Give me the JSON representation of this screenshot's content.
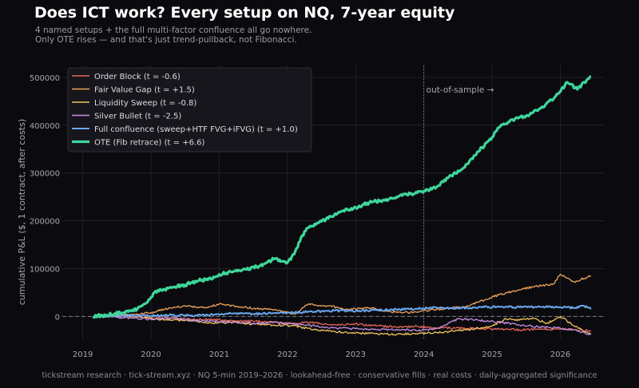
{
  "header": {
    "title": "Does ICT work? Every setup on NQ, 7-year equity",
    "subtitle_line1": "4 named setups + the full multi-factor confluence all go nowhere.",
    "subtitle_line2": "Only OTE rises — and that's just trend-pullback, not Fibonacci."
  },
  "footer": {
    "text": "tickstream research · tick-stream.xyz · NQ 5-min 2019–2026 · lookahead-free · conservative fills · real costs · daily-aggregated significance"
  },
  "colors": {
    "background": "#0b0b0f",
    "grid": "#24242c",
    "tick_text": "#a6a6ae"
  },
  "chart_data": {
    "type": "line",
    "ylabel": "cumulative P&L ($, 1 contract, after costs)",
    "xlim": [
      2018.7,
      2026.65
    ],
    "ylim": [
      -48000,
      525000
    ],
    "x_ticks": [
      2019,
      2020,
      2021,
      2022,
      2023,
      2024,
      2025,
      2026
    ],
    "x_tick_labels": [
      "2019",
      "2020",
      "2021",
      "2022",
      "2023",
      "2024",
      "2025",
      "2026"
    ],
    "y_ticks": [
      0,
      100000,
      200000,
      300000,
      400000,
      500000
    ],
    "y_tick_labels": [
      "0",
      "100000",
      "200000",
      "300000",
      "400000",
      "500000"
    ],
    "grid": true,
    "zero_line": true,
    "oos_marker": {
      "x": 2024.0,
      "label": "out-of-sample →"
    },
    "legend_position": "top-left",
    "series": [
      {
        "name": "Order Block   (t = -0.6)",
        "color": "#e8665a",
        "width": 1.3,
        "x": [
          2019.2,
          2019.5,
          2019.8,
          2020.0,
          2020.3,
          2020.6,
          2020.9,
          2021.2,
          2021.5,
          2021.8,
          2022.1,
          2022.4,
          2022.7,
          2023.0,
          2023.3,
          2023.6,
          2023.9,
          2024.2,
          2024.5,
          2024.8,
          2025.1,
          2025.4,
          2025.7,
          2026.0,
          2026.2,
          2026.45
        ],
        "values": [
          0,
          1000,
          -2000,
          -3000,
          -4000,
          -6000,
          -7000,
          -9000,
          -10000,
          -12000,
          -14000,
          -13000,
          -18000,
          -16000,
          -20000,
          -22000,
          -21000,
          -25000,
          -24000,
          -26000,
          -27000,
          -28000,
          -27000,
          -26000,
          -28000,
          -30000
        ]
      },
      {
        "name": "Fair Value Gap   (t = +1.5)",
        "color": "#f0a35c",
        "width": 1.3,
        "x": [
          2019.2,
          2019.5,
          2019.8,
          2020.0,
          2020.2,
          2020.5,
          2020.8,
          2021.0,
          2021.3,
          2021.6,
          2021.9,
          2022.1,
          2022.3,
          2022.6,
          2022.9,
          2023.2,
          2023.5,
          2023.8,
          2024.0,
          2024.3,
          2024.6,
          2024.9,
          2025.1,
          2025.3,
          2025.6,
          2025.9,
          2026.0,
          2026.2,
          2026.45
        ],
        "values": [
          0,
          2000,
          5000,
          8000,
          15000,
          22000,
          18000,
          26000,
          20000,
          16000,
          12000,
          5000,
          25000,
          22000,
          14000,
          18000,
          10000,
          8000,
          12000,
          16000,
          20000,
          35000,
          45000,
          52000,
          62000,
          68000,
          88000,
          72000,
          85000
        ]
      },
      {
        "name": "Liquidity Sweep   (t = -0.8)",
        "color": "#f2c45e",
        "width": 1.3,
        "x": [
          2019.2,
          2019.5,
          2019.8,
          2020.0,
          2020.3,
          2020.6,
          2020.9,
          2021.2,
          2021.5,
          2021.8,
          2022.1,
          2022.4,
          2022.7,
          2023.0,
          2023.3,
          2023.6,
          2023.9,
          2024.2,
          2024.5,
          2024.8,
          2025.0,
          2025.2,
          2025.4,
          2025.6,
          2025.8,
          2026.0,
          2026.2,
          2026.45
        ],
        "values": [
          0,
          3000,
          1000,
          -4000,
          -8000,
          -10000,
          -14000,
          -12000,
          -16000,
          -18000,
          -20000,
          -28000,
          -32000,
          -35000,
          -36000,
          -38000,
          -36000,
          -34000,
          -30000,
          -25000,
          -20000,
          -5000,
          -8000,
          -3000,
          -15000,
          0,
          -20000,
          -38000
        ]
      },
      {
        "name": "Silver Bullet   (t = -2.5)",
        "color": "#c590e0",
        "width": 1.3,
        "x": [
          2019.2,
          2019.5,
          2019.8,
          2020.0,
          2020.3,
          2020.6,
          2020.9,
          2021.2,
          2021.5,
          2021.8,
          2022.1,
          2022.4,
          2022.7,
          2023.0,
          2023.3,
          2023.6,
          2023.9,
          2024.2,
          2024.5,
          2024.8,
          2025.1,
          2025.4,
          2025.7,
          2026.0,
          2026.2,
          2026.45
        ],
        "values": [
          0,
          -2000,
          -4000,
          -6000,
          -3000,
          -8000,
          -10000,
          -12000,
          -14000,
          -13000,
          -16000,
          -20000,
          -24000,
          -26000,
          -28000,
          -27000,
          -30000,
          -25000,
          -5000,
          -8000,
          -12000,
          -18000,
          -22000,
          -25000,
          -28000,
          -38000
        ]
      },
      {
        "name": "Full confluence (sweep+HTF FVG+iFVG)   (t = +1.0)",
        "color": "#6aa8f0",
        "width": 2.0,
        "x": [
          2019.2,
          2019.5,
          2019.8,
          2020.0,
          2020.3,
          2020.6,
          2020.9,
          2021.2,
          2021.5,
          2021.8,
          2022.1,
          2022.4,
          2022.7,
          2023.0,
          2023.3,
          2023.6,
          2023.9,
          2024.2,
          2024.5,
          2024.8,
          2025.1,
          2025.4,
          2025.7,
          2026.0,
          2026.2,
          2026.35,
          2026.45
        ],
        "values": [
          0,
          1000,
          2000,
          1000,
          3000,
          2000,
          4000,
          6000,
          5000,
          7000,
          8000,
          10000,
          12000,
          11000,
          13000,
          14000,
          16000,
          18000,
          17000,
          19000,
          20000,
          19000,
          20000,
          19000,
          18000,
          22000,
          15000
        ]
      },
      {
        "name": "OTE (Fib retrace)   (t = +6.6)",
        "color": "#3fd69a",
        "width": 3.2,
        "x": [
          2019.15,
          2019.35,
          2019.6,
          2019.8,
          2019.95,
          2020.05,
          2020.15,
          2020.3,
          2020.5,
          2020.7,
          2020.9,
          2021.0,
          2021.2,
          2021.4,
          2021.6,
          2021.8,
          2022.0,
          2022.1,
          2022.2,
          2022.3,
          2022.45,
          2022.6,
          2022.8,
          2023.0,
          2023.2,
          2023.4,
          2023.6,
          2023.8,
          2024.0,
          2024.2,
          2024.4,
          2024.6,
          2024.8,
          2025.0,
          2025.1,
          2025.3,
          2025.5,
          2025.7,
          2025.9,
          2026.0,
          2026.1,
          2026.25,
          2026.35,
          2026.45
        ],
        "values": [
          0,
          3000,
          8000,
          15000,
          30000,
          50000,
          55000,
          60000,
          66000,
          75000,
          78000,
          88000,
          93000,
          98000,
          106000,
          120000,
          112000,
          130000,
          165000,
          185000,
          195000,
          205000,
          220000,
          228000,
          238000,
          243000,
          250000,
          256000,
          262000,
          272000,
          295000,
          312000,
          345000,
          375000,
          395000,
          412000,
          420000,
          435000,
          455000,
          470000,
          490000,
          475000,
          490000,
          502000
        ]
      }
    ]
  }
}
